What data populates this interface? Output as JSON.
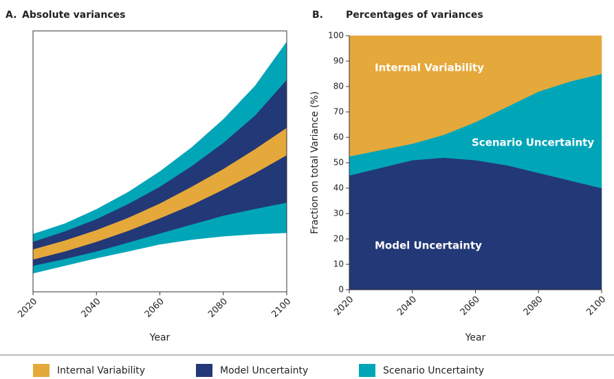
{
  "chart_data": [
    {
      "type": "band",
      "title_letter": "A.",
      "title": "Absolute variances",
      "x": [
        2020,
        2030,
        2040,
        2050,
        2060,
        2070,
        2080,
        2090,
        2100
      ],
      "xlim": [
        2020,
        2100
      ],
      "xticks": [
        2020,
        2040,
        2060,
        2080,
        2100
      ],
      "xlabel": "Year",
      "ylim": [
        0,
        100
      ],
      "boundaries": [
        [
          7.1,
          10.0,
          12.9,
          15.5,
          18.2,
          20.0,
          21.3,
          22.1,
          22.6
        ],
        [
          10.0,
          12.6,
          15.5,
          18.9,
          22.4,
          25.8,
          29.2,
          31.8,
          34.2
        ],
        [
          12.4,
          15.5,
          19.2,
          23.4,
          28.2,
          33.3,
          39.2,
          45.5,
          52.4
        ],
        [
          16.3,
          19.7,
          23.7,
          28.4,
          33.9,
          40.3,
          47.1,
          54.7,
          62.9
        ],
        [
          19.2,
          23.2,
          27.9,
          33.7,
          40.3,
          48.2,
          57.1,
          67.6,
          81.3
        ],
        [
          22.1,
          26.1,
          31.6,
          38.2,
          46.1,
          55.3,
          66.1,
          78.9,
          95.8
        ]
      ],
      "band_colors": [
        "#00a6b8",
        "#233876",
        "#e5a83b",
        "#233876",
        "#00a6b8"
      ]
    },
    {
      "type": "stacked_area",
      "title_letter": "B.",
      "title": "Percentages of variances",
      "x": [
        2020,
        2030,
        2040,
        2050,
        2060,
        2070,
        2080,
        2090,
        2100
      ],
      "xlim": [
        2020,
        2100
      ],
      "xticks": [
        2020,
        2040,
        2060,
        2080,
        2100
      ],
      "xlabel": "Year",
      "ylabel": "Fraction on total Variance (%)",
      "ylim": [
        0,
        100
      ],
      "yticks": [
        0,
        10,
        20,
        30,
        40,
        50,
        60,
        70,
        80,
        90,
        100
      ],
      "series": [
        {
          "name": "Model Uncertainty",
          "color": "#233876",
          "values": [
            45,
            48,
            51,
            52,
            51,
            49,
            46,
            43,
            40
          ]
        },
        {
          "name": "Scenario Uncertainty",
          "color": "#00a6b8",
          "values": [
            7.5,
            7,
            6.5,
            9,
            15,
            23,
            32,
            39,
            45
          ]
        },
        {
          "name": "Internal Variability",
          "color": "#e5a83b",
          "values": [
            47.5,
            45,
            42.5,
            39,
            34,
            28,
            22,
            18,
            15
          ]
        }
      ]
    }
  ],
  "legend": [
    {
      "name": "Internal Variability",
      "color": "#e5a83b"
    },
    {
      "name": "Model Uncertainty",
      "color": "#233876"
    },
    {
      "name": "Scenario Uncertainty",
      "color": "#00a6b8"
    }
  ]
}
